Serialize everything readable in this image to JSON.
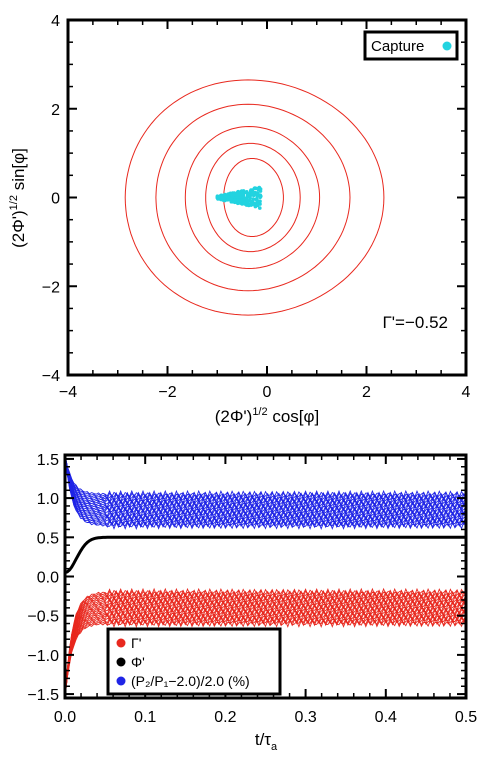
{
  "chart_data": [
    {
      "type": "line",
      "xlabel": "(2Φ')",
      "xlabel_sup": "1/2",
      "xlabel_tail": " cos[φ]",
      "ylabel": "(2Φ')",
      "ylabel_sup": "1/2",
      "ylabel_tail": " sin[φ]",
      "xlim": [
        -4,
        4
      ],
      "ylim": [
        -4,
        4
      ],
      "xticks": [
        -4,
        -2,
        0,
        2,
        4
      ],
      "yticks": [
        -4,
        -2,
        0,
        2,
        4
      ],
      "xtick_labels": [
        "−4",
        "−2",
        "0",
        "2",
        "4"
      ],
      "ytick_labels": [
        "−4",
        "−2",
        "0",
        "2",
        "4"
      ],
      "annotation": "Γ'=−0.52",
      "annotation_color": "#e8281e",
      "legend": {
        "label": "Capture",
        "color": "#22d3e0",
        "position": "top-right"
      },
      "series": [
        {
          "kind": "trajectory-loops",
          "color": "#e8281e",
          "loops": [
            {
              "cx": -0.3,
              "cy": 0.0,
              "rx": 0.6,
              "ry": 0.88
            },
            {
              "cx": -0.33,
              "cy": 0.0,
              "rx": 0.95,
              "ry": 1.22
            },
            {
              "cx": -0.36,
              "cy": 0.0,
              "rx": 1.35,
              "ry": 1.6
            },
            {
              "cx": -0.38,
              "cy": 0.0,
              "rx": 1.95,
              "ry": 2.1
            },
            {
              "cx": -0.38,
              "cy": 0.0,
              "rx": 2.6,
              "ry": 2.65
            }
          ]
        },
        {
          "kind": "scatter-cluster",
          "color": "#22d3e0",
          "x_range": [
            -1.0,
            -0.1
          ],
          "y_range": [
            -0.22,
            0.22
          ]
        }
      ]
    },
    {
      "type": "scatter",
      "xlabel": "t/τ",
      "xlabel_sub": "a",
      "xlim": [
        0.0,
        0.5
      ],
      "ylim": [
        -1.55,
        1.55
      ],
      "xticks": [
        0.0,
        0.1,
        0.2,
        0.3,
        0.4,
        0.5
      ],
      "yticks": [
        -1.5,
        -1.0,
        -0.5,
        0.0,
        0.5,
        1.0,
        1.5
      ],
      "xtick_labels": [
        "0.0",
        "0.1",
        "0.2",
        "0.3",
        "0.4",
        "0.5"
      ],
      "ytick_labels": [
        "−1.5",
        "−1.0",
        "−0.5",
        "0.0",
        "0.5",
        "1.0",
        "1.5"
      ],
      "legend_position": "bottom-left",
      "series": [
        {
          "name": "Γ'",
          "color": "#e8281e",
          "band": [
            -0.6,
            -0.2
          ],
          "start": -1.55
        },
        {
          "name": "Φ'",
          "color": "#000000",
          "band": [
            0.5,
            0.5
          ],
          "start": 0.05
        },
        {
          "name": "(P₂/P₁−2.0)/2.0 (%)",
          "color": "#1f24e6",
          "band": [
            0.65,
            1.05
          ],
          "start": 1.55
        }
      ]
    }
  ]
}
